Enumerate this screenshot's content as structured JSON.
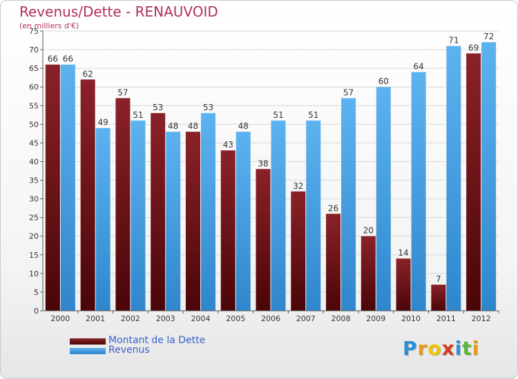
{
  "title": "Revenus/Dette - RENAUVOID",
  "subtitle": "(en milliers d'€)",
  "logo": [
    "P",
    "r",
    "o",
    "x",
    "i",
    "t",
    "i"
  ],
  "logo_colors": [
    "#2a8fd6",
    "#e89a1c",
    "#f0c400",
    "#d63a1c",
    "#2a8fd6",
    "#5db43a",
    "#e89a1c"
  ],
  "chart_data": {
    "type": "bar",
    "categories": [
      "2000",
      "2001",
      "2002",
      "2003",
      "2004",
      "2005",
      "2006",
      "2007",
      "2008",
      "2009",
      "2010",
      "2011",
      "2012"
    ],
    "series": [
      {
        "name": "Montant de la Dette",
        "values": [
          66,
          62,
          57,
          53,
          48,
          43,
          38,
          32,
          26,
          20,
          14,
          7,
          69
        ],
        "color": "#6b1014"
      },
      {
        "name": "Revenus",
        "values": [
          66,
          49,
          51,
          48,
          53,
          48,
          51,
          51,
          57,
          60,
          64,
          71,
          72
        ],
        "color": "#4aa3e6"
      }
    ],
    "ylim": [
      0,
      75
    ],
    "yticks": [
      0,
      5,
      10,
      15,
      20,
      25,
      30,
      35,
      40,
      45,
      50,
      55,
      60,
      65,
      70,
      75
    ],
    "grid": true,
    "legend": "bottom-left"
  }
}
